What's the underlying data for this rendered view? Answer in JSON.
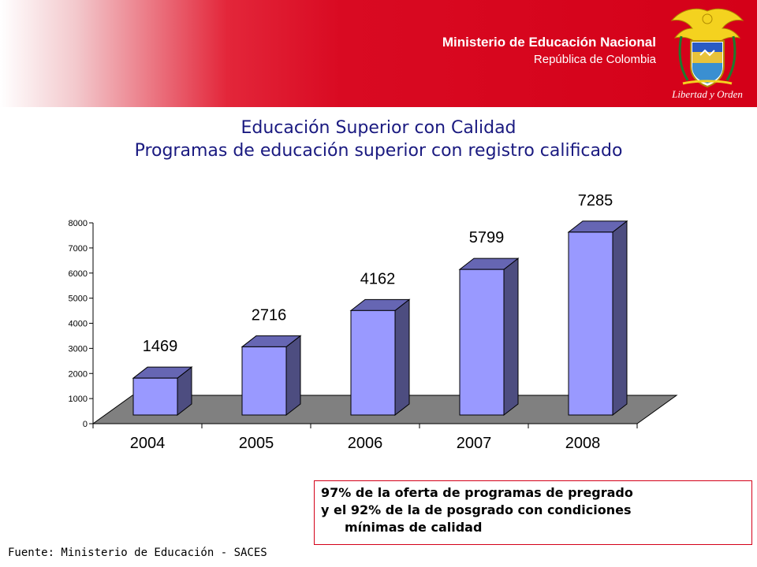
{
  "header": {
    "ministry": "Ministerio de Educación Nacional",
    "country": "República de Colombia",
    "crest_motto": "Libertad y Orden",
    "colors": {
      "banner_red": "#d40018",
      "title_blue": "#1a1a80"
    }
  },
  "title": {
    "line1": "Educación Superior con Calidad",
    "line2": "Programas de educación superior con registro calificado"
  },
  "chart_data": {
    "type": "bar",
    "style": "3d",
    "categories": [
      "2004",
      "2005",
      "2006",
      "2007",
      "2008"
    ],
    "values": [
      1469,
      2716,
      4162,
      5799,
      7285
    ],
    "data_labels": [
      "1469",
      "2716",
      "4162",
      "5799",
      "7285"
    ],
    "ylim": [
      0,
      8000
    ],
    "yticks": [
      "0",
      "1000",
      "2000",
      "3000",
      "4000",
      "5000",
      "6000",
      "7000",
      "8000"
    ],
    "grid": false,
    "legend": "none",
    "colors": {
      "bar_front": "#9999ff",
      "bar_side": "#4d4d80",
      "bar_top": "#6666b3",
      "floor": "#808080"
    }
  },
  "note": {
    "line1": "97% de la oferta de programas de pregrado",
    "line2": "y el 92% de la de posgrado con condiciones",
    "line3": "mínimas de calidad"
  },
  "source": "Fuente: Ministerio de Educación - SACES"
}
